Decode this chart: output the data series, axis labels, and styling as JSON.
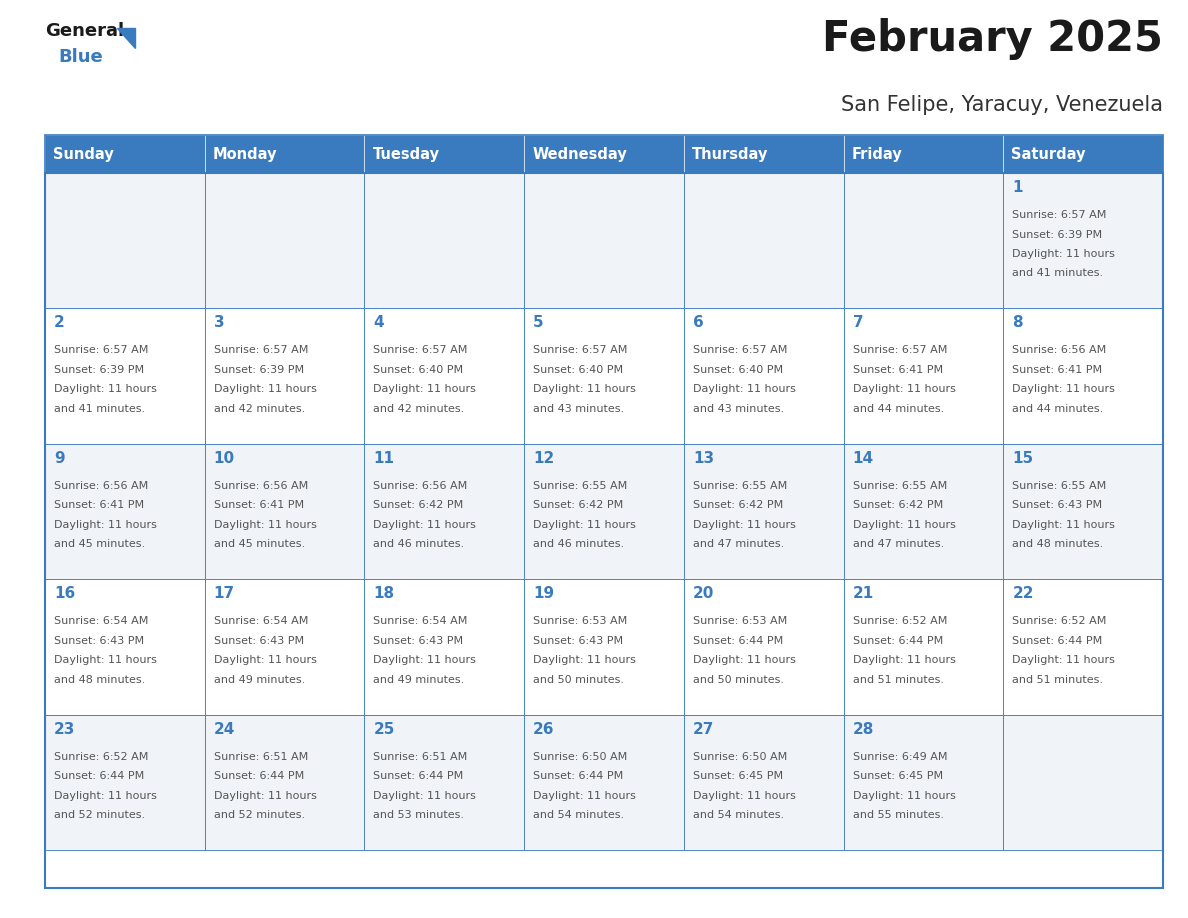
{
  "title": "February 2025",
  "subtitle": "San Felipe, Yaracuy, Venezuela",
  "days_of_week": [
    "Sunday",
    "Monday",
    "Tuesday",
    "Wednesday",
    "Thursday",
    "Friday",
    "Saturday"
  ],
  "header_bg": "#3a7abf",
  "header_text_color": "#ffffff",
  "cell_bg_odd": "#f0f4f8",
  "cell_bg_even": "#ffffff",
  "day_number_color": "#3a7abf",
  "info_text_color": "#555555",
  "border_color": "#3a7abf",
  "title_color": "#1a1a1a",
  "subtitle_color": "#333333",
  "logo_general_color": "#1a1a1a",
  "logo_blue_color": "#3a7abf",
  "calendar": [
    [
      null,
      null,
      null,
      null,
      null,
      null,
      1
    ],
    [
      2,
      3,
      4,
      5,
      6,
      7,
      8
    ],
    [
      9,
      10,
      11,
      12,
      13,
      14,
      15
    ],
    [
      16,
      17,
      18,
      19,
      20,
      21,
      22
    ],
    [
      23,
      24,
      25,
      26,
      27,
      28,
      null
    ]
  ],
  "sunrise": {
    "1": "6:57 AM",
    "2": "6:57 AM",
    "3": "6:57 AM",
    "4": "6:57 AM",
    "5": "6:57 AM",
    "6": "6:57 AM",
    "7": "6:57 AM",
    "8": "6:56 AM",
    "9": "6:56 AM",
    "10": "6:56 AM",
    "11": "6:56 AM",
    "12": "6:55 AM",
    "13": "6:55 AM",
    "14": "6:55 AM",
    "15": "6:55 AM",
    "16": "6:54 AM",
    "17": "6:54 AM",
    "18": "6:54 AM",
    "19": "6:53 AM",
    "20": "6:53 AM",
    "21": "6:52 AM",
    "22": "6:52 AM",
    "23": "6:52 AM",
    "24": "6:51 AM",
    "25": "6:51 AM",
    "26": "6:50 AM",
    "27": "6:50 AM",
    "28": "6:49 AM"
  },
  "sunset": {
    "1": "6:39 PM",
    "2": "6:39 PM",
    "3": "6:39 PM",
    "4": "6:40 PM",
    "5": "6:40 PM",
    "6": "6:40 PM",
    "7": "6:41 PM",
    "8": "6:41 PM",
    "9": "6:41 PM",
    "10": "6:41 PM",
    "11": "6:42 PM",
    "12": "6:42 PM",
    "13": "6:42 PM",
    "14": "6:42 PM",
    "15": "6:43 PM",
    "16": "6:43 PM",
    "17": "6:43 PM",
    "18": "6:43 PM",
    "19": "6:43 PM",
    "20": "6:44 PM",
    "21": "6:44 PM",
    "22": "6:44 PM",
    "23": "6:44 PM",
    "24": "6:44 PM",
    "25": "6:44 PM",
    "26": "6:44 PM",
    "27": "6:45 PM",
    "28": "6:45 PM"
  },
  "daylight": {
    "1": "and 41 minutes.",
    "2": "and 41 minutes.",
    "3": "and 42 minutes.",
    "4": "and 42 minutes.",
    "5": "and 43 minutes.",
    "6": "and 43 minutes.",
    "7": "and 44 minutes.",
    "8": "and 44 minutes.",
    "9": "and 45 minutes.",
    "10": "and 45 minutes.",
    "11": "and 46 minutes.",
    "12": "and 46 minutes.",
    "13": "and 47 minutes.",
    "14": "and 47 minutes.",
    "15": "and 48 minutes.",
    "16": "and 48 minutes.",
    "17": "and 49 minutes.",
    "18": "and 49 minutes.",
    "19": "and 50 minutes.",
    "20": "and 50 minutes.",
    "21": "and 51 minutes.",
    "22": "and 51 minutes.",
    "23": "and 52 minutes.",
    "24": "and 52 minutes.",
    "25": "and 53 minutes.",
    "26": "and 54 minutes.",
    "27": "and 54 minutes.",
    "28": "and 55 minutes."
  },
  "fig_width": 11.88,
  "fig_height": 9.18,
  "dpi": 100
}
